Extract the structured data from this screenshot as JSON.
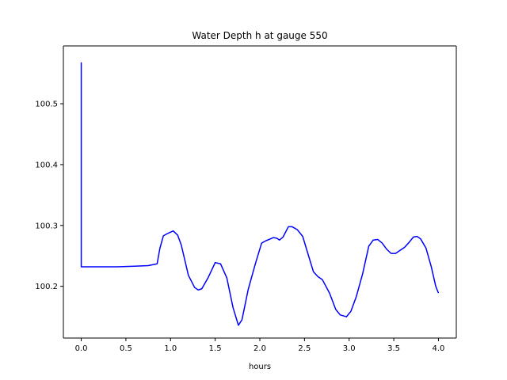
{
  "chart_data": {
    "type": "line",
    "title": "Water Depth h at gauge 550",
    "xlabel": "hours",
    "ylabel": "",
    "xlim": [
      -0.2,
      4.2
    ],
    "ylim": [
      100.115,
      100.595
    ],
    "xticks": [
      0.0,
      0.5,
      1.0,
      1.5,
      2.0,
      2.5,
      3.0,
      3.5,
      4.0
    ],
    "xtick_labels": [
      "0.0",
      "0.5",
      "1.0",
      "1.5",
      "2.0",
      "2.5",
      "3.0",
      "3.5",
      "4.0"
    ],
    "yticks": [
      100.2,
      100.3,
      100.4,
      100.5
    ],
    "ytick_labels": [
      "100.2",
      "100.3",
      "100.4",
      "100.5"
    ],
    "grid": false,
    "series": [
      {
        "color": "#0000ff",
        "x": [
          0.0,
          0.0,
          0.0,
          0.2,
          0.4,
          0.6,
          0.75,
          0.85,
          0.88,
          0.92,
          0.97,
          1.03,
          1.08,
          1.12,
          1.2,
          1.27,
          1.31,
          1.35,
          1.42,
          1.5,
          1.56,
          1.63,
          1.7,
          1.76,
          1.8,
          1.87,
          1.95,
          2.02,
          2.07,
          2.12,
          2.15,
          2.19,
          2.22,
          2.26,
          2.32,
          2.36,
          2.42,
          2.48,
          2.55,
          2.6,
          2.65,
          2.7,
          2.78,
          2.85,
          2.9,
          2.97,
          3.02,
          3.08,
          3.15,
          3.22,
          3.27,
          3.32,
          3.37,
          3.42,
          3.47,
          3.52,
          3.57,
          3.62,
          3.67,
          3.72,
          3.76,
          3.8,
          3.86,
          3.92,
          3.97,
          4.0
        ],
        "y": [
          100.568,
          100.4,
          100.232,
          100.232,
          100.232,
          100.233,
          100.234,
          100.237,
          100.262,
          100.283,
          100.287,
          100.291,
          100.284,
          100.268,
          100.218,
          100.198,
          100.194,
          100.196,
          100.214,
          100.239,
          100.237,
          100.214,
          100.165,
          100.136,
          100.145,
          100.195,
          100.237,
          100.271,
          100.275,
          100.278,
          100.28,
          100.279,
          100.276,
          100.281,
          100.298,
          100.298,
          100.293,
          100.282,
          100.248,
          100.224,
          100.216,
          100.211,
          100.189,
          100.162,
          100.153,
          100.15,
          100.159,
          100.183,
          100.22,
          100.266,
          100.276,
          100.277,
          100.271,
          100.261,
          100.254,
          100.254,
          100.259,
          100.264,
          100.272,
          100.281,
          100.282,
          100.278,
          100.263,
          100.232,
          100.2,
          100.189
        ]
      }
    ]
  }
}
